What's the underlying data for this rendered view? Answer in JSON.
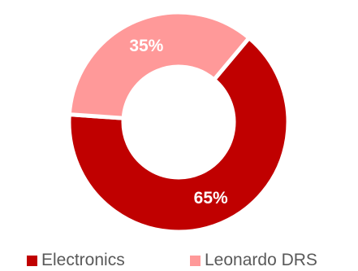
{
  "chart_data": {
    "type": "pie",
    "donut": true,
    "categories": [
      "Electronics",
      "Leonardo DRS"
    ],
    "values": [
      65,
      35
    ],
    "value_labels": [
      "65%",
      "35%"
    ],
    "colors": [
      "#c00000",
      "#ff9999"
    ],
    "legend_position": "bottom"
  },
  "legend": {
    "items": [
      {
        "label": "Electronics",
        "color": "#c00000"
      },
      {
        "label": "Leonardo DRS",
        "color": "#ff9999"
      }
    ]
  }
}
